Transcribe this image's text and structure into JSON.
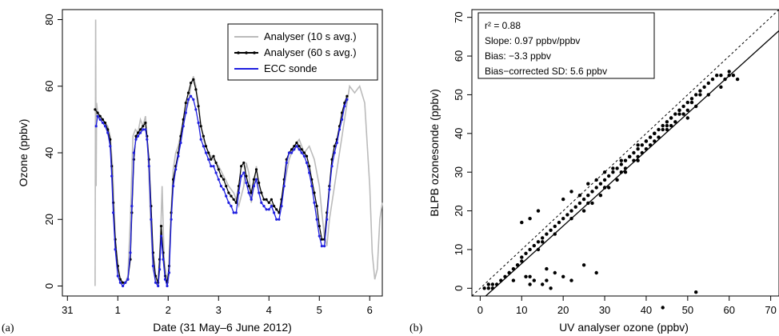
{
  "chart_data": [
    {
      "type": "line",
      "panel_label": "(a)",
      "xlabel": "Date (31 May–6 June 2012)",
      "ylabel": "Ozone (ppbv)",
      "x_ticks": [
        {
          "label": "31",
          "value": 0
        },
        {
          "label": "1",
          "value": 1
        },
        {
          "label": "2",
          "value": 2
        },
        {
          "label": "3",
          "value": 3
        },
        {
          "label": "4",
          "value": 4
        },
        {
          "label": "5",
          "value": 5
        },
        {
          "label": "6",
          "value": 6
        }
      ],
      "y_ticks": [
        0,
        20,
        40,
        60,
        80
      ],
      "xlim": [
        -0.1,
        6.25
      ],
      "ylim": [
        -3,
        83
      ],
      "legend_position": "top-right",
      "colors": {
        "analyser10": "#bbbbbb",
        "analyser60": "#000000",
        "sonde": "#1f1fe0"
      },
      "series": [
        {
          "name": "Analyser (10 s avg.)",
          "color": "#bbbbbb",
          "x": [
            0.55,
            0.56,
            0.57,
            0.58,
            0.6,
            0.7,
            0.8,
            0.85,
            0.9,
            0.92,
            0.95,
            1.0,
            1.05,
            1.1,
            1.15,
            1.2,
            1.25,
            1.3,
            1.35,
            1.4,
            1.45,
            1.5,
            1.55,
            1.6,
            1.65,
            1.7,
            1.75,
            1.8,
            1.85,
            1.88,
            1.92,
            1.96,
            2.0,
            2.05,
            2.1,
            2.15,
            2.2,
            2.3,
            2.4,
            2.45,
            2.5,
            2.55,
            2.6,
            2.65,
            2.7,
            2.8,
            2.9,
            3.0,
            3.1,
            3.2,
            3.3,
            3.4,
            3.5,
            3.55,
            3.6,
            3.65,
            3.7,
            3.75,
            3.8,
            3.9,
            4.0,
            4.1,
            4.2,
            4.3,
            4.4,
            4.5,
            4.6,
            4.7,
            4.8,
            4.9,
            5.0,
            5.05,
            5.1,
            5.15,
            5.2,
            5.3,
            5.4,
            5.5,
            5.6,
            5.7,
            5.8,
            5.9,
            6.0,
            6.05,
            6.1,
            6.15,
            6.2,
            6.25
          ],
          "y": [
            0,
            80,
            30,
            55,
            52,
            50,
            48,
            45,
            35,
            25,
            15,
            5,
            2,
            1,
            1,
            3,
            20,
            45,
            47,
            46,
            50,
            48,
            51,
            40,
            20,
            5,
            2,
            1,
            15,
            30,
            8,
            3,
            1,
            20,
            35,
            40,
            42,
            50,
            55,
            60,
            63,
            60,
            55,
            48,
            44,
            40,
            38,
            36,
            33,
            30,
            28,
            24,
            30,
            37,
            34,
            25,
            30,
            36,
            30,
            26,
            25,
            24,
            22,
            30,
            38,
            42,
            44,
            40,
            42,
            38,
            30,
            22,
            15,
            12,
            20,
            30,
            40,
            50,
            60,
            58,
            60,
            55,
            30,
            10,
            2,
            5,
            20,
            25
          ]
        },
        {
          "name": "Analyser (60 s avg.)",
          "color": "#000000",
          "x": [
            0.55,
            0.6,
            0.65,
            0.7,
            0.75,
            0.8,
            0.85,
            0.88,
            0.91,
            0.95,
            1.0,
            1.05,
            1.1,
            1.15,
            1.2,
            1.25,
            1.28,
            1.32,
            1.36,
            1.4,
            1.45,
            1.5,
            1.55,
            1.58,
            1.62,
            1.66,
            1.7,
            1.75,
            1.8,
            1.83,
            1.86,
            1.9,
            1.94,
            1.98,
            2.02,
            2.06,
            2.1,
            2.15,
            2.2,
            2.25,
            2.3,
            2.35,
            2.4,
            2.45,
            2.5,
            2.55,
            2.6,
            2.65,
            2.7,
            2.75,
            2.8,
            2.85,
            2.9,
            2.95,
            3.0,
            3.05,
            3.1,
            3.15,
            3.2,
            3.25,
            3.3,
            3.35,
            3.4,
            3.45,
            3.5,
            3.55,
            3.6,
            3.65,
            3.7,
            3.75,
            3.8,
            3.85,
            3.9,
            3.95,
            4.0,
            4.05,
            4.1,
            4.15,
            4.2,
            4.25,
            4.3,
            4.35,
            4.4,
            4.45,
            4.5,
            4.55,
            4.6,
            4.65,
            4.7,
            4.75,
            4.8,
            4.85,
            4.9,
            4.95,
            5.0,
            5.05,
            5.1,
            5.15,
            5.2,
            5.25,
            5.3,
            5.35,
            5.4,
            5.45,
            5.5,
            5.55
          ],
          "y": [
            53,
            52,
            51,
            50,
            49,
            47,
            44,
            36,
            25,
            14,
            6,
            2,
            1,
            1,
            2,
            8,
            22,
            38,
            45,
            46,
            47,
            48,
            49,
            45,
            38,
            24,
            10,
            3,
            1,
            8,
            18,
            10,
            3,
            1,
            6,
            22,
            32,
            36,
            40,
            45,
            50,
            55,
            58,
            61,
            62,
            59,
            54,
            48,
            45,
            42,
            40,
            38,
            39,
            37,
            35,
            33,
            32,
            30,
            28,
            27,
            26,
            25,
            30,
            36,
            37,
            33,
            30,
            28,
            32,
            35,
            31,
            28,
            26,
            26,
            25,
            26,
            24,
            23,
            22,
            26,
            32,
            38,
            40,
            41,
            42,
            43,
            42,
            41,
            40,
            39,
            36,
            32,
            28,
            24,
            18,
            14,
            14,
            22,
            30,
            38,
            42,
            44,
            48,
            52,
            55,
            57
          ]
        },
        {
          "name": "ECC sonde",
          "color": "#1f1fe0",
          "x": [
            0.57,
            0.6,
            0.65,
            0.7,
            0.75,
            0.8,
            0.85,
            0.88,
            0.91,
            0.95,
            1.0,
            1.05,
            1.1,
            1.15,
            1.2,
            1.25,
            1.28,
            1.32,
            1.36,
            1.4,
            1.45,
            1.5,
            1.55,
            1.58,
            1.62,
            1.66,
            1.7,
            1.75,
            1.8,
            1.83,
            1.86,
            1.9,
            1.94,
            1.98,
            2.02,
            2.06,
            2.1,
            2.15,
            2.2,
            2.25,
            2.3,
            2.35,
            2.4,
            2.45,
            2.5,
            2.55,
            2.6,
            2.65,
            2.7,
            2.75,
            2.8,
            2.85,
            2.9,
            2.95,
            3.0,
            3.05,
            3.1,
            3.15,
            3.2,
            3.25,
            3.3,
            3.35,
            3.4,
            3.45,
            3.5,
            3.55,
            3.6,
            3.65,
            3.7,
            3.75,
            3.8,
            3.85,
            3.9,
            3.95,
            4.0,
            4.05,
            4.1,
            4.15,
            4.2,
            4.25,
            4.3,
            4.35,
            4.4,
            4.45,
            4.5,
            4.55,
            4.6,
            4.65,
            4.7,
            4.75,
            4.8,
            4.85,
            4.9,
            4.95,
            5.0,
            5.05,
            5.1,
            5.15,
            5.2,
            5.25,
            5.3,
            5.35,
            5.4,
            5.45,
            5.5,
            5.55
          ],
          "y": [
            48,
            51,
            50,
            49,
            48,
            46,
            42,
            33,
            22,
            11,
            3,
            1,
            0,
            1,
            2,
            10,
            24,
            40,
            44,
            45,
            46,
            47,
            47,
            44,
            36,
            20,
            6,
            1,
            0,
            5,
            15,
            8,
            2,
            0,
            4,
            20,
            30,
            35,
            39,
            43,
            48,
            52,
            56,
            57,
            56,
            53,
            49,
            44,
            42,
            40,
            38,
            36,
            36,
            34,
            32,
            30,
            29,
            27,
            25,
            24,
            22,
            22,
            28,
            33,
            34,
            31,
            28,
            26,
            30,
            32,
            28,
            25,
            24,
            23,
            23,
            24,
            22,
            20,
            20,
            24,
            30,
            37,
            40,
            40,
            41,
            42,
            41,
            40,
            39,
            37,
            34,
            30,
            25,
            20,
            15,
            12,
            12,
            20,
            29,
            36,
            40,
            43,
            47,
            50,
            54,
            56
          ]
        }
      ],
      "legend": [
        "Analyser (10 s avg.)",
        "Analyser (60 s avg.)",
        "ECC sonde"
      ]
    },
    {
      "type": "scatter",
      "panel_label": "(b)",
      "xlabel": "UV analyser ozone (ppbv)",
      "ylabel": "BLPB ozonesonde (ppbv)",
      "x_ticks": [
        0,
        10,
        20,
        30,
        40,
        50,
        60,
        70
      ],
      "y_ticks": [
        0,
        10,
        20,
        30,
        40,
        50,
        60,
        70
      ],
      "xlim": [
        -2,
        72
      ],
      "ylim": [
        -2,
        72
      ],
      "stats": {
        "r2": "r² =  0.88",
        "slope": "Slope:  0.97  ppbv/ppbv",
        "bias": "Bias:  −3.3  ppbv",
        "sd": "Bias−corrected SD:  5.6  ppbv"
      },
      "fit_line": {
        "slope": 0.97,
        "intercept": -3.3
      },
      "one_to_one": true,
      "points_x": [
        1,
        2,
        2,
        3,
        3,
        4,
        5,
        6,
        7,
        8,
        9,
        10,
        11,
        12,
        13,
        14,
        15,
        16,
        17,
        18,
        19,
        20,
        21,
        22,
        23,
        24,
        25,
        26,
        27,
        28,
        29,
        30,
        31,
        32,
        33,
        34,
        35,
        36,
        37,
        38,
        39,
        40,
        41,
        42,
        43,
        44,
        45,
        46,
        47,
        48,
        49,
        50,
        51,
        52,
        53,
        54,
        55,
        56,
        57,
        58,
        59,
        60,
        61,
        62,
        10,
        12,
        14,
        15,
        16,
        18,
        20,
        22,
        25,
        28,
        11,
        13,
        15,
        17,
        9,
        7,
        8,
        12,
        30,
        35,
        38,
        40,
        42,
        45,
        48,
        50,
        52,
        55,
        58,
        60,
        20,
        22,
        24,
        26,
        28,
        30,
        32,
        34,
        36,
        38,
        40,
        42,
        44,
        46,
        48,
        25,
        27,
        29,
        31,
        33,
        35,
        37,
        39,
        41,
        43,
        45,
        47,
        49,
        51,
        53,
        10,
        14,
        18,
        22,
        26,
        30,
        34,
        38,
        42,
        46,
        50,
        12,
        16,
        52,
        44
      ],
      "points_y": [
        0,
        1,
        0,
        1,
        0,
        1,
        2,
        3,
        4,
        5,
        6,
        8,
        9,
        10,
        11,
        12,
        13,
        14,
        15,
        16,
        17,
        18,
        19,
        20,
        21,
        22,
        23,
        24,
        25,
        26,
        27,
        28,
        29,
        30,
        31,
        32,
        33,
        34,
        35,
        36,
        37,
        38,
        39,
        40,
        41,
        42,
        43,
        44,
        45,
        46,
        47,
        48,
        49,
        50,
        51,
        52,
        53,
        54,
        55,
        55,
        54,
        56,
        55,
        54,
        17,
        18,
        20,
        12,
        5,
        4,
        3,
        2,
        6,
        4,
        3,
        2,
        1,
        0,
        6,
        4,
        2,
        1,
        26,
        30,
        33,
        36,
        40,
        42,
        45,
        44,
        47,
        50,
        52,
        55,
        23,
        25,
        24,
        27,
        28,
        30,
        31,
        33,
        34,
        37,
        38,
        40,
        41,
        44,
        46,
        20,
        22,
        24,
        26,
        28,
        31,
        33,
        35,
        37,
        39,
        41,
        43,
        45,
        48,
        50,
        7,
        10,
        14,
        18,
        22,
        26,
        30,
        34,
        38,
        42,
        46,
        3,
        2,
        -1,
        -5
      ]
    }
  ]
}
